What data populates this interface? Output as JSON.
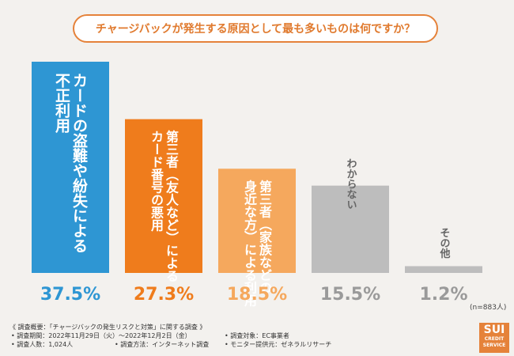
{
  "question": "チャージバックが発生する原因として最も多いものは何ですか？",
  "chart_data": {
    "type": "bar",
    "title": "チャージバックが発生する原因として最も多いものは何ですか？",
    "categories": [
      [
        "カードの盗難や紛失による",
        "不正利用"
      ],
      [
        "第三者（友人など）による",
        "カード番号の悪用"
      ],
      [
        "第三者（家族などの",
        "身近な方）による利用"
      ],
      [
        "わからない"
      ],
      [
        "その他"
      ]
    ],
    "values": [
      37.5,
      27.3,
      18.5,
      15.5,
      1.2
    ],
    "value_labels": [
      "37.5%",
      "27.3%",
      "18.5%",
      "15.5%",
      "1.2%"
    ],
    "colors": [
      "#2e96d3",
      "#ef7c1c",
      "#f5a85d",
      "#bdbdbd",
      "#bdbdbd"
    ],
    "label_colors": [
      "#2e96d3",
      "#ef7c1c",
      "#f5a85d",
      "#9a9a9a",
      "#9a9a9a"
    ],
    "ylim": [
      0,
      37.5
    ],
    "xlabel": "",
    "ylabel": ""
  },
  "n_note": "(n=883人)",
  "notes": {
    "title": "《 調査概要：「チャージバックの発生リスクと対策」に関する調査 》",
    "period": "• 調査期間：2022年11月29日（火）～2022年12月2日（金）",
    "respondents": "• 調査人数：1,024人",
    "method": "• 調査方法：インターネット調査",
    "target": "• 調査対象：EC事業者",
    "provider": "• モニター提供元：ゼネラルリサーチ"
  },
  "logo": {
    "line1": "SUI",
    "line2": "CREDIT",
    "line3": "SERVICE"
  }
}
